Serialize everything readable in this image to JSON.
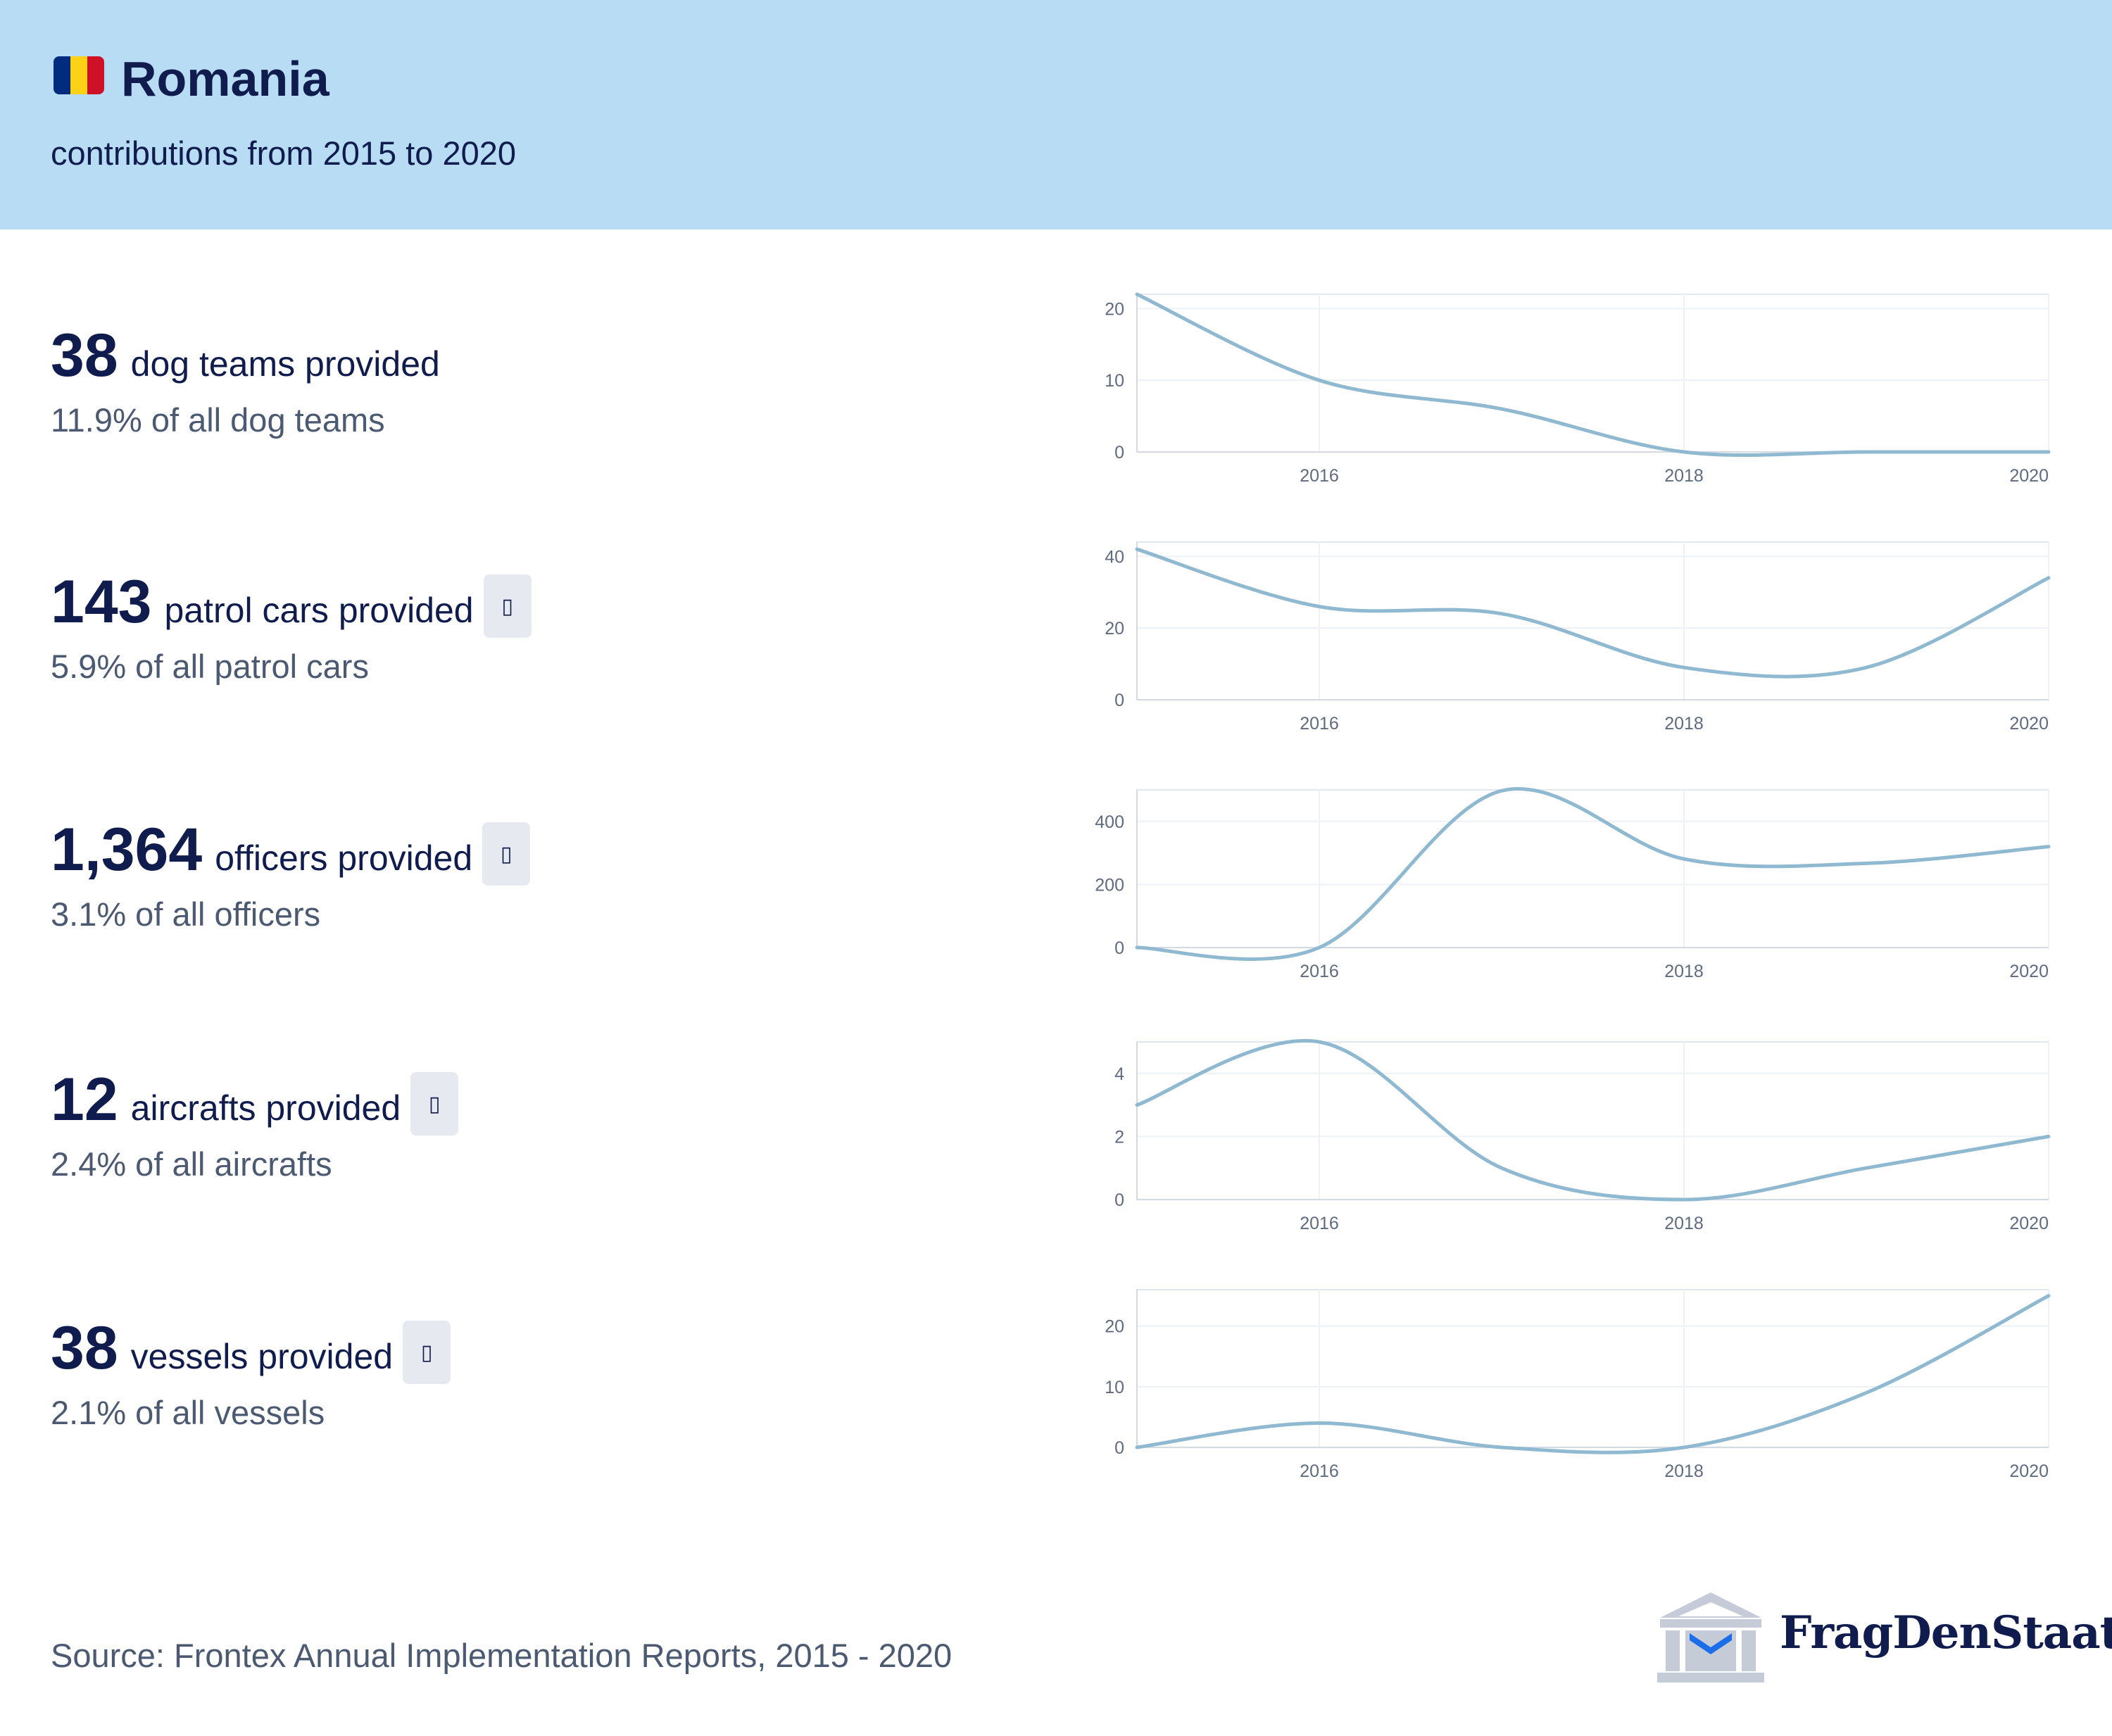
{
  "header": {
    "country": "Romania",
    "subtitle": "contributions from 2015 to 2020",
    "flag_colors": [
      "#002B7F",
      "#FCD116",
      "#CE1126"
    ]
  },
  "stats": [
    {
      "value": "38",
      "label": "dog teams provided",
      "share": "11.9% of all dog teams",
      "has_info": false
    },
    {
      "value": "143",
      "label": "patrol cars provided",
      "share": "5.9% of all patrol cars",
      "has_info": true
    },
    {
      "value": "1,364",
      "label": "officers provided",
      "share": "3.1% of all officers",
      "has_info": true
    },
    {
      "value": "12",
      "label": "aircrafts provided",
      "share": "2.4% of all aircrafts",
      "has_info": true
    },
    {
      "value": "38",
      "label": "vessels provided",
      "share": "2.1% of all vessels",
      "has_info": true
    }
  ],
  "info_icon": "info-icon",
  "source": "Source: Frontex Annual Implementation Reports, 2015 - 2020",
  "logo": {
    "text": "FragDenStaat",
    "icon": "building-icon"
  },
  "line_color": "#8fb8d1",
  "chart_data": [
    {
      "type": "line",
      "x": [
        2015,
        2016,
        2017,
        2018,
        2019,
        2020
      ],
      "values": [
        22,
        10,
        6,
        0,
        0,
        0
      ],
      "xticks": [
        "2016",
        "2018",
        "2020"
      ],
      "yticks": [
        "0",
        "10",
        "20"
      ],
      "ylim": [
        0,
        22
      ],
      "xlim": [
        2015,
        2020
      ]
    },
    {
      "type": "line",
      "x": [
        2015,
        2016,
        2017,
        2018,
        2019,
        2020
      ],
      "values": [
        42,
        26,
        24,
        9,
        9,
        34
      ],
      "xticks": [
        "2016",
        "2018",
        "2020"
      ],
      "yticks": [
        "0",
        "20",
        "40"
      ],
      "ylim": [
        0,
        44
      ],
      "xlim": [
        2015,
        2020
      ]
    },
    {
      "type": "line",
      "x": [
        2015,
        2016,
        2017,
        2018,
        2019,
        2020
      ],
      "values": [
        0,
        0,
        497,
        281,
        267,
        320
      ],
      "xticks": [
        "2016",
        "2018",
        "2020"
      ],
      "yticks": [
        "0",
        "200",
        "400"
      ],
      "ylim": [
        0,
        500
      ],
      "xlim": [
        2015,
        2020
      ]
    },
    {
      "type": "line",
      "x": [
        2015,
        2016,
        2017,
        2018,
        2019,
        2020
      ],
      "values": [
        3,
        5,
        1,
        0,
        1,
        2
      ],
      "xticks": [
        "2016",
        "2018",
        "2020"
      ],
      "yticks": [
        "0",
        "2",
        "4"
      ],
      "ylim": [
        0,
        5
      ],
      "xlim": [
        2015,
        2020
      ]
    },
    {
      "type": "line",
      "x": [
        2015,
        2016,
        2017,
        2018,
        2019,
        2020
      ],
      "values": [
        0,
        4,
        0,
        0,
        9,
        25
      ],
      "xticks": [
        "2016",
        "2018",
        "2020"
      ],
      "yticks": [
        "0",
        "10",
        "20"
      ],
      "ylim": [
        0,
        26
      ],
      "xlim": [
        2015,
        2020
      ]
    }
  ]
}
